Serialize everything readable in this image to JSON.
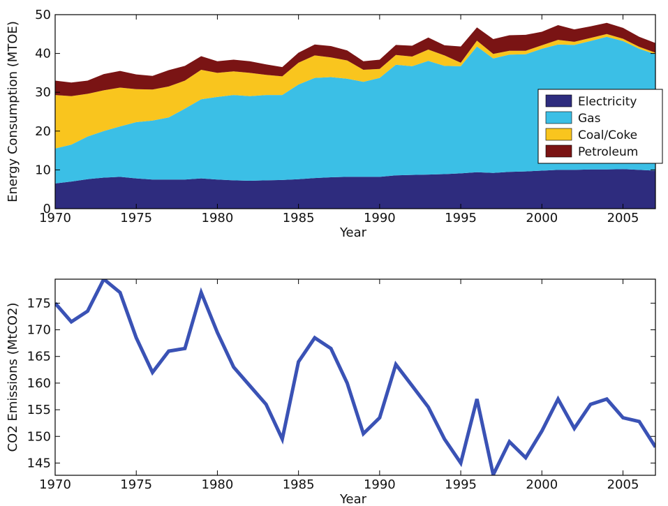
{
  "chart_data": [
    {
      "type": "area",
      "stacked": true,
      "xlabel": "Year",
      "ylabel": "Energy Consumption (MTOE)",
      "xlim": [
        1970,
        2007
      ],
      "ylim": [
        0,
        50
      ],
      "xticks": [
        1970,
        1975,
        1980,
        1985,
        1990,
        1995,
        2000,
        2005
      ],
      "yticks": [
        0,
        10,
        20,
        30,
        40,
        50
      ],
      "grid": false,
      "legend_position": "right",
      "x": [
        1970,
        1971,
        1972,
        1973,
        1974,
        1975,
        1976,
        1977,
        1978,
        1979,
        1980,
        1981,
        1982,
        1983,
        1984,
        1985,
        1986,
        1987,
        1988,
        1989,
        1990,
        1991,
        1992,
        1993,
        1994,
        1995,
        1996,
        1997,
        1998,
        1999,
        2000,
        2001,
        2002,
        2003,
        2004,
        2005,
        2006,
        2007
      ],
      "series": [
        {
          "name": "Electricity",
          "color": "#2e2c7e",
          "values": [
            6.5,
            7,
            7.6,
            8,
            8.2,
            7.8,
            7.5,
            7.5,
            7.5,
            7.8,
            7.5,
            7.3,
            7.2,
            7.3,
            7.4,
            7.6,
            7.9,
            8.1,
            8.2,
            8.2,
            8.2,
            8.6,
            8.7,
            8.8,
            8.9,
            9.1,
            9.4,
            9.2,
            9.5,
            9.6,
            9.8,
            10,
            10,
            10.1,
            10.1,
            10.2,
            10,
            9.8
          ]
        },
        {
          "name": "Gas",
          "color": "#3bbfe6",
          "values": [
            9,
            9.5,
            11,
            12,
            13,
            14.5,
            15.2,
            16,
            18.3,
            20.4,
            21.3,
            22,
            21.8,
            22,
            21.9,
            24.4,
            25.8,
            25.8,
            25.3,
            24.5,
            25.5,
            28.5,
            28,
            29.3,
            27.9,
            27.6,
            32.4,
            29.5,
            30.2,
            30.2,
            31.4,
            32.3,
            32.2,
            33.1,
            34.2,
            33,
            31.2,
            30
          ]
        },
        {
          "name": "Coal/Coke",
          "color": "#f9c51e",
          "values": [
            13.8,
            12.5,
            11,
            10.5,
            10,
            8.5,
            8,
            8,
            7.2,
            7.6,
            6.2,
            6.1,
            6,
            5.2,
            4.8,
            5.6,
            5.8,
            5.1,
            4.7,
            3.1,
            2.3,
            2.5,
            2.5,
            2.9,
            2.7,
            0.9,
            1.5,
            1.2,
            1.0,
            0.9,
            0.9,
            1.2,
            0.8,
            0.8,
            0.7,
            0.6,
            0.5,
            0.4
          ]
        },
        {
          "name": "Petroleum",
          "color": "#7a1414",
          "values": [
            3.7,
            3.5,
            3.4,
            4.2,
            4.3,
            3.8,
            3.5,
            4.2,
            3.8,
            3.5,
            3.0,
            3.0,
            3.0,
            2.7,
            2.4,
            2.6,
            2.8,
            2.9,
            2.6,
            2.2,
            2.4,
            2.6,
            2.8,
            3.1,
            2.6,
            4.2,
            3.4,
            3.8,
            4.0,
            4.1,
            3.5,
            3.8,
            3.2,
            3.0,
            2.9,
            2.8,
            2.6,
            2.5
          ]
        }
      ]
    },
    {
      "type": "line",
      "xlabel": "Year",
      "ylabel": "CO2 Emissions (MtCO2)",
      "xlim": [
        1970,
        2007
      ],
      "ylim": [
        142.7,
        179.5
      ],
      "xticks": [
        1970,
        1975,
        1980,
        1985,
        1990,
        1995,
        2000,
        2005
      ],
      "yticks": [
        145,
        150,
        155,
        160,
        165,
        170,
        175
      ],
      "grid": false,
      "x": [
        1970,
        1971,
        1972,
        1973,
        1974,
        1975,
        1976,
        1977,
        1978,
        1979,
        1980,
        1981,
        1982,
        1983,
        1984,
        1985,
        1986,
        1987,
        1988,
        1989,
        1990,
        1991,
        1992,
        1993,
        1994,
        1995,
        1996,
        1997,
        1998,
        1999,
        2000,
        2001,
        2002,
        2003,
        2004,
        2005,
        2006,
        2007
      ],
      "series": [
        {
          "color": "#3a52b5",
          "values": [
            175,
            171.5,
            173.5,
            179.5,
            177,
            168.5,
            162,
            166,
            166.5,
            177,
            169.5,
            163,
            159.5,
            156,
            149.5,
            164,
            168.5,
            166.5,
            160,
            150.5,
            153.5,
            163.5,
            159.5,
            155.5,
            149.5,
            145,
            157,
            142.8,
            149,
            146,
            151,
            157,
            151.5,
            156,
            157,
            153.5,
            152.8,
            148
          ]
        }
      ]
    }
  ]
}
